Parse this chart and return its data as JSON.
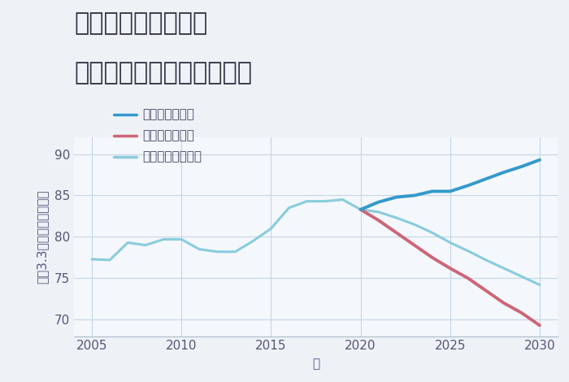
{
  "title_line1": "岐阜県関市西神野の",
  "title_line2": "中古マンションの価格推移",
  "xlabel": "年",
  "ylabel": "坪（3.3㎡）単価（万円）",
  "background_color": "#eef2f7",
  "plot_background_color": "#f4f7fb",
  "grid_color": "#c5d5e8",
  "historical_years": [
    2005,
    2006,
    2007,
    2008,
    2009,
    2010,
    2011,
    2012,
    2013,
    2014,
    2015,
    2016,
    2017,
    2018,
    2019,
    2020
  ],
  "historical_values": [
    77.3,
    77.2,
    79.3,
    79.0,
    79.7,
    79.7,
    78.5,
    78.2,
    78.2,
    79.5,
    81.0,
    83.5,
    84.3,
    84.3,
    84.5,
    83.3
  ],
  "good_years": [
    2020,
    2021,
    2022,
    2023,
    2024,
    2025,
    2026,
    2027,
    2028,
    2029,
    2030
  ],
  "good_values": [
    83.3,
    84.2,
    84.8,
    85.0,
    85.5,
    85.5,
    86.2,
    87.0,
    87.8,
    88.5,
    89.3
  ],
  "bad_years": [
    2020,
    2021,
    2022,
    2023,
    2024,
    2025,
    2026,
    2027,
    2028,
    2029,
    2030
  ],
  "bad_values": [
    83.3,
    82.0,
    80.5,
    79.0,
    77.5,
    76.2,
    75.0,
    73.5,
    72.0,
    70.8,
    69.3
  ],
  "normal_years": [
    2020,
    2021,
    2022,
    2023,
    2024,
    2025,
    2026,
    2027,
    2028,
    2029,
    2030
  ],
  "normal_values": [
    83.3,
    83.0,
    82.3,
    81.5,
    80.5,
    79.3,
    78.3,
    77.2,
    76.2,
    75.2,
    74.2
  ],
  "good_color": "#3399cc",
  "bad_color": "#cc6677",
  "normal_color": "#88ccdd",
  "historical_color": "#88ccdd",
  "legend_labels": [
    "グッドシナリオ",
    "バッドシナリオ",
    "ノーマルシナリオ"
  ],
  "legend_colors": [
    "#3399cc",
    "#cc6677",
    "#88ccdd"
  ],
  "ylim": [
    68,
    92
  ],
  "yticks": [
    70,
    75,
    80,
    85,
    90
  ],
  "xlim": [
    2004,
    2031
  ],
  "xticks": [
    2005,
    2010,
    2015,
    2020,
    2025,
    2030
  ],
  "title_fontsize": 22,
  "axis_fontsize": 11,
  "legend_fontsize": 11,
  "tick_color": "#555577",
  "linewidth_historical": 2.2,
  "linewidth_future": 2.8
}
